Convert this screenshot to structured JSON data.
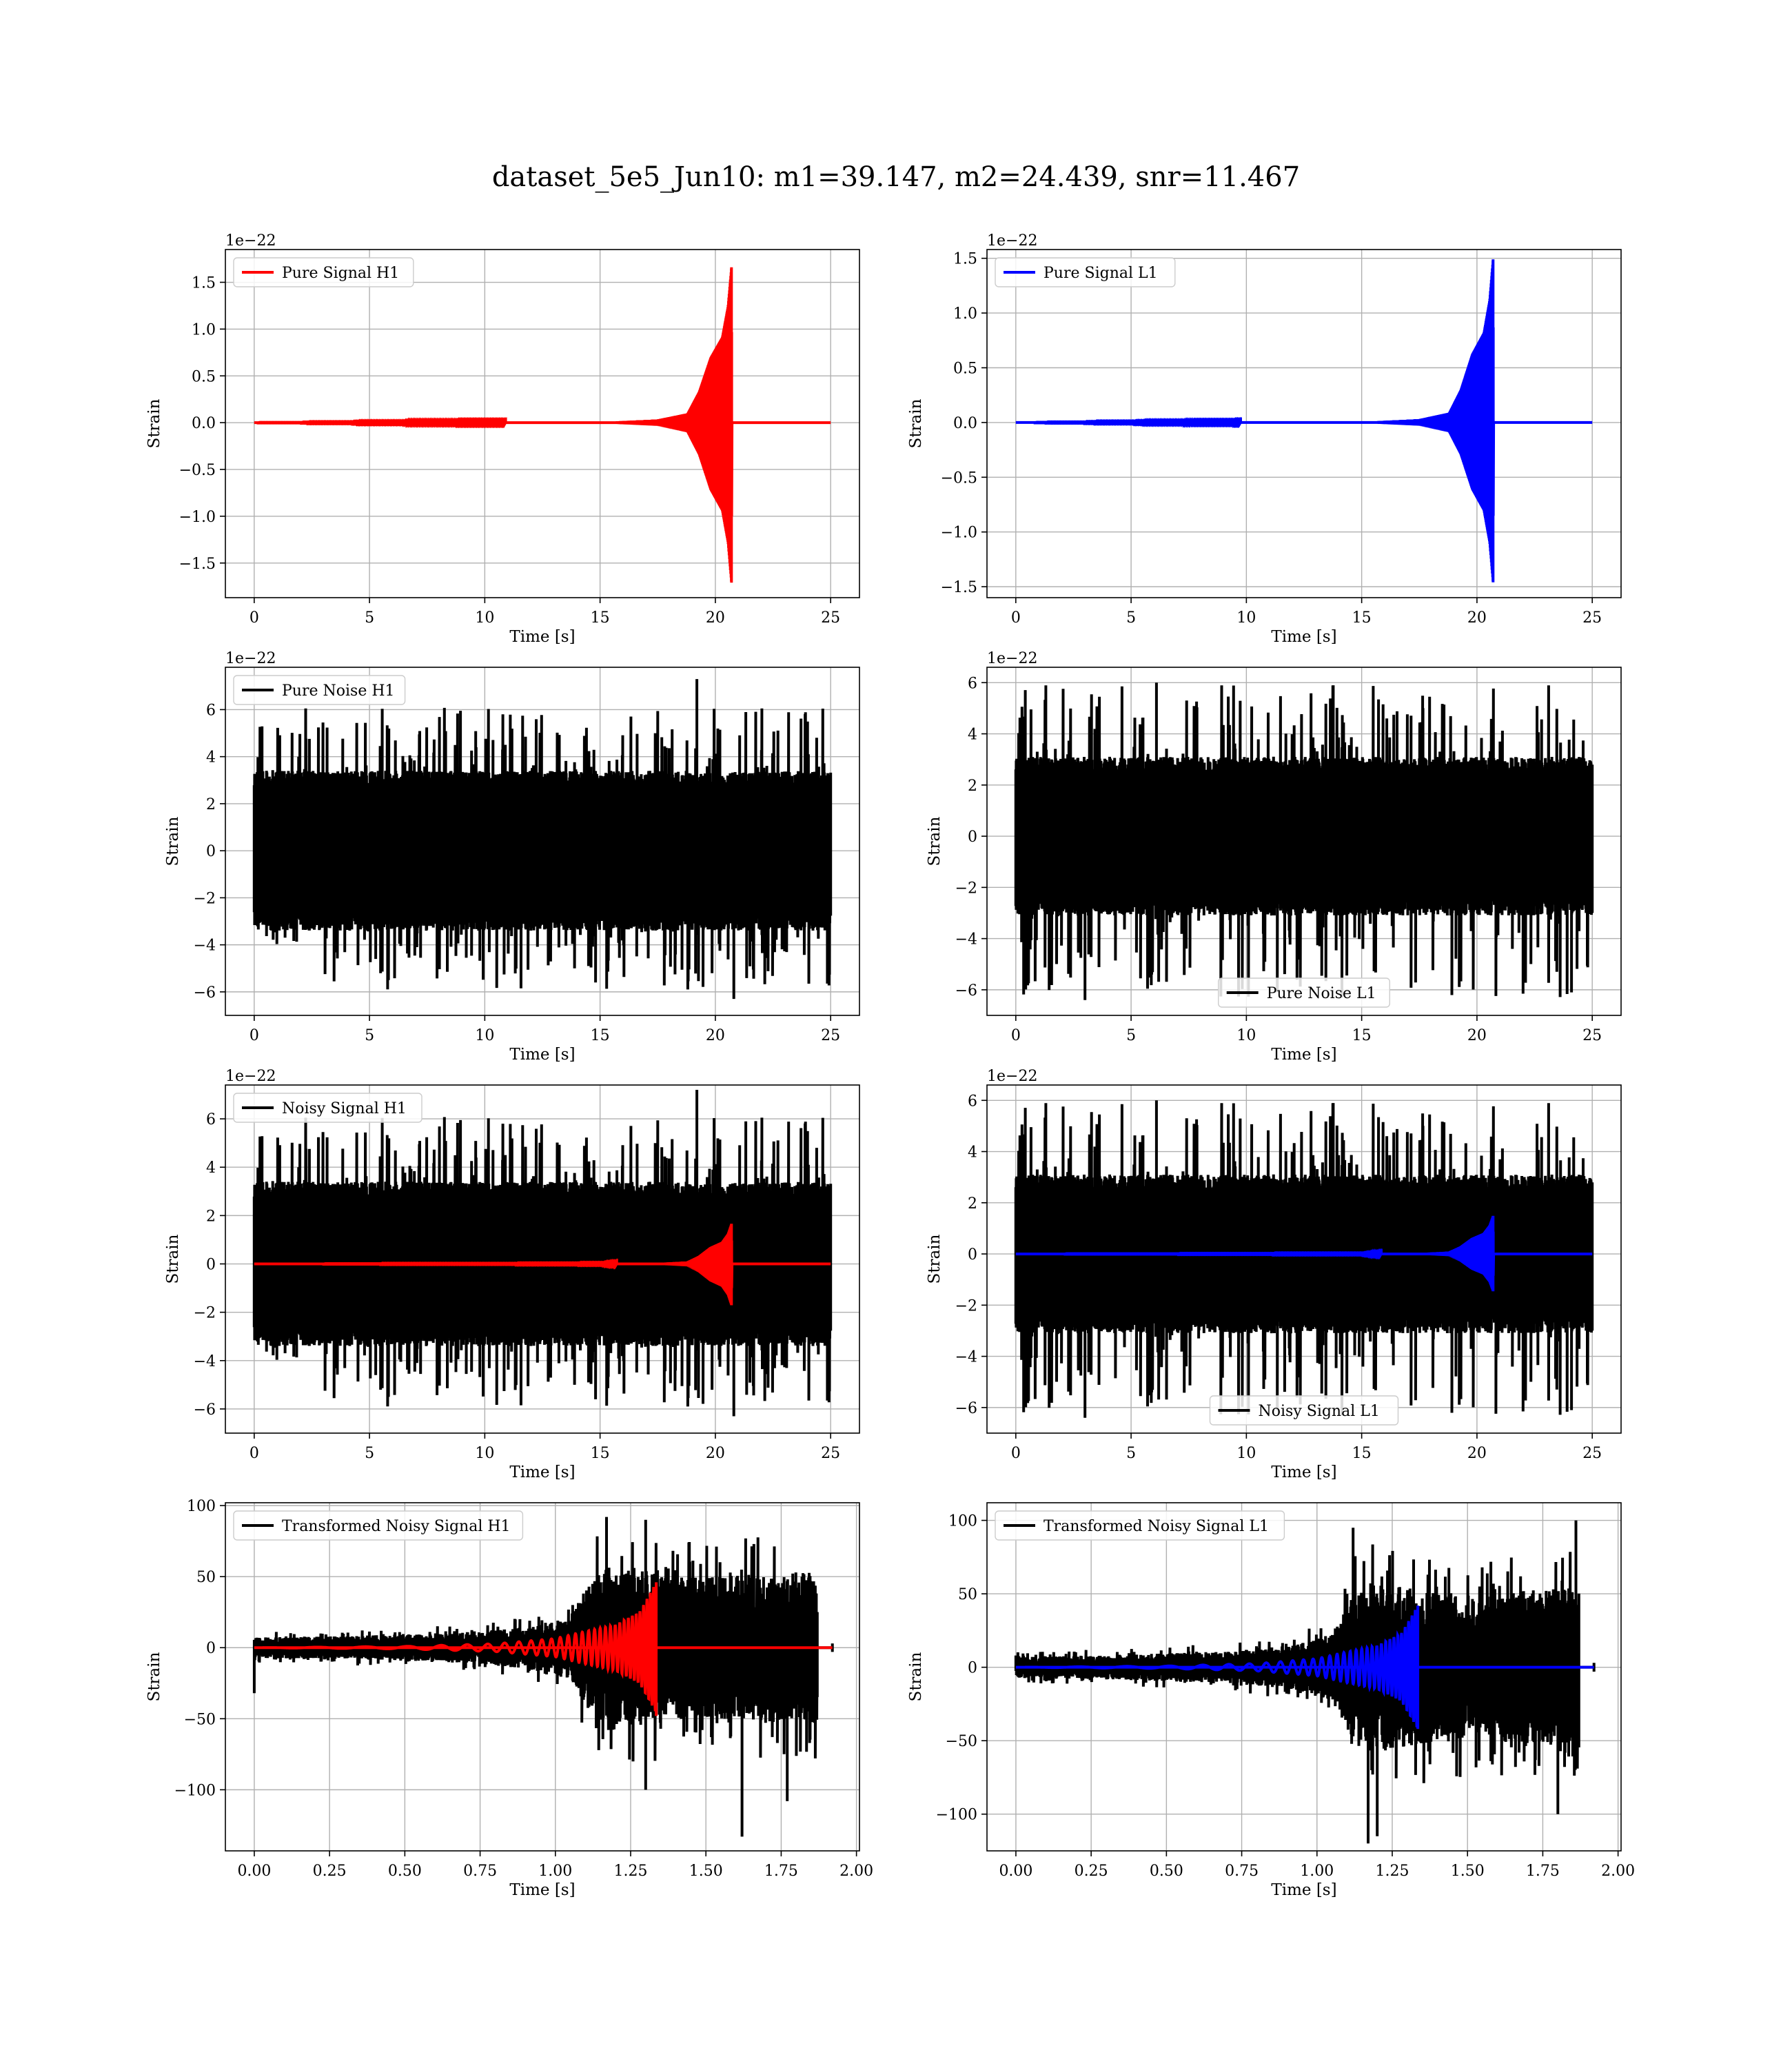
{
  "figure": {
    "suptitle": "dataset_5e5_Jun10: m1=39.147, m2=24.439, snr=11.467"
  },
  "colors": {
    "h1_signal": "#ff0000",
    "l1_signal": "#0000ff",
    "noise": "#000000",
    "grid": "#b0b0b0"
  },
  "chart_data": [
    {
      "id": "pure-signal-h1",
      "type": "line",
      "xlabel": "Time [s]",
      "ylabel": "Strain",
      "offset_text": "1e−22",
      "xlim": [
        -1.25,
        26.25
      ],
      "ylim": [
        -1.87,
        1.85
      ],
      "xticks": [
        0,
        5,
        10,
        15,
        20,
        25
      ],
      "xtick_labels": [
        "0",
        "5",
        "10",
        "15",
        "20",
        "25"
      ],
      "yticks": [
        -1.5,
        -1.0,
        -0.5,
        0.0,
        0.5,
        1.0,
        1.5
      ],
      "ytick_labels": [
        "−1.5",
        "−1.0",
        "−0.5",
        "0.0",
        "0.5",
        "1.0",
        "1.5"
      ],
      "grid": true,
      "legend_loc": "upper left",
      "series": [
        {
          "name": "Pure Signal H1",
          "color": "#ff0000",
          "kind": "chirp",
          "x_start": 0,
          "x_end": 25,
          "merger_x": 20.7,
          "peak_pos": 1.66,
          "peak_neg": -1.71,
          "envelope": [
            [
              0,
              0.0
            ],
            [
              15,
              0.003
            ],
            [
              17.5,
              0.02
            ],
            [
              18.8,
              0.06
            ],
            [
              19.3,
              0.2
            ],
            [
              19.8,
              0.42
            ],
            [
              20.3,
              0.55
            ],
            [
              20.55,
              0.75
            ],
            [
              20.7,
              1.0
            ],
            [
              20.72,
              0.0
            ],
            [
              25,
              0.0
            ]
          ]
        }
      ]
    },
    {
      "id": "pure-signal-l1",
      "type": "line",
      "xlabel": "Time [s]",
      "ylabel": "Strain",
      "offset_text": "1e−22",
      "xlim": [
        -1.25,
        26.25
      ],
      "ylim": [
        -1.6,
        1.58
      ],
      "xticks": [
        0,
        5,
        10,
        15,
        20,
        25
      ],
      "xtick_labels": [
        "0",
        "5",
        "10",
        "15",
        "20",
        "25"
      ],
      "yticks": [
        -1.5,
        -1.0,
        -0.5,
        0.0,
        0.5,
        1.0,
        1.5
      ],
      "ytick_labels": [
        "−1.5",
        "−1.0",
        "−0.5",
        "0.0",
        "0.5",
        "1.0",
        "1.5"
      ],
      "grid": true,
      "legend_loc": "upper left",
      "series": [
        {
          "name": "Pure Signal L1",
          "color": "#0000ff",
          "kind": "chirp",
          "x_start": 0,
          "x_end": 25,
          "merger_x": 20.7,
          "peak_pos": 1.49,
          "peak_neg": -1.46,
          "envelope": [
            [
              0,
              0.0
            ],
            [
              15,
              0.003
            ],
            [
              17.5,
              0.02
            ],
            [
              18.8,
              0.06
            ],
            [
              19.3,
              0.2
            ],
            [
              19.8,
              0.42
            ],
            [
              20.3,
              0.55
            ],
            [
              20.55,
              0.75
            ],
            [
              20.7,
              1.0
            ],
            [
              20.72,
              0.0
            ],
            [
              25,
              0.0
            ]
          ]
        }
      ]
    },
    {
      "id": "pure-noise-h1",
      "type": "line",
      "xlabel": "Time [s]",
      "ylabel": "Strain",
      "offset_text": "1e−22",
      "xlim": [
        -1.25,
        26.25
      ],
      "ylim": [
        -7.0,
        7.8
      ],
      "xticks": [
        0,
        5,
        10,
        15,
        20,
        25
      ],
      "xtick_labels": [
        "0",
        "5",
        "10",
        "15",
        "20",
        "25"
      ],
      "yticks": [
        -6,
        -4,
        -2,
        0,
        2,
        4,
        6
      ],
      "ytick_labels": [
        "−6",
        "−4",
        "−2",
        "0",
        "2",
        "4",
        "6"
      ],
      "grid": true,
      "legend_loc": "upper left",
      "series": [
        {
          "name": "Pure Noise H1",
          "color": "#000000",
          "kind": "noise",
          "x_start": 0,
          "x_end": 25,
          "core": 3.4,
          "spike_max": 6.1,
          "spike_min": -5.9,
          "extreme_spikes": [
            [
              19.2,
              7.3
            ],
            [
              20.8,
              -6.3
            ]
          ],
          "seed": 11
        }
      ]
    },
    {
      "id": "pure-noise-l1",
      "type": "line",
      "xlabel": "Time [s]",
      "ylabel": "Strain",
      "offset_text": "1e−22",
      "xlim": [
        -1.25,
        26.25
      ],
      "ylim": [
        -7.0,
        6.6
      ],
      "xticks": [
        0,
        5,
        10,
        15,
        20,
        25
      ],
      "xtick_labels": [
        "0",
        "5",
        "10",
        "15",
        "20",
        "25"
      ],
      "yticks": [
        -6,
        -4,
        -2,
        0,
        2,
        4,
        6
      ],
      "ytick_labels": [
        "−6",
        "−4",
        "−2",
        "0",
        "2",
        "4",
        "6"
      ],
      "grid": true,
      "legend_loc": "lower center",
      "series": [
        {
          "name": "Pure Noise L1",
          "color": "#000000",
          "kind": "noise",
          "x_start": 0,
          "x_end": 25,
          "core": 3.1,
          "spike_max": 5.9,
          "spike_min": -6.3,
          "extreme_spikes": [
            [
              3.0,
              -6.4
            ],
            [
              6.1,
              6.0
            ],
            [
              24.1,
              -6.1
            ]
          ],
          "seed": 23
        }
      ]
    },
    {
      "id": "noisy-signal-h1",
      "type": "line",
      "xlabel": "Time [s]",
      "ylabel": "Strain",
      "offset_text": "1e−22",
      "xlim": [
        -1.25,
        26.25
      ],
      "ylim": [
        -7.0,
        7.4
      ],
      "xticks": [
        0,
        5,
        10,
        15,
        20,
        25
      ],
      "xtick_labels": [
        "0",
        "5",
        "10",
        "15",
        "20",
        "25"
      ],
      "yticks": [
        -6,
        -4,
        -2,
        0,
        2,
        4,
        6
      ],
      "ytick_labels": [
        "−6",
        "−4",
        "−2",
        "0",
        "2",
        "4",
        "6"
      ],
      "grid": true,
      "legend_loc": "upper left",
      "series": [
        {
          "name": "Noisy Signal H1",
          "color": "#000000",
          "kind": "noise",
          "x_start": 0,
          "x_end": 25,
          "core": 3.4,
          "spike_max": 6.1,
          "spike_min": -5.9,
          "extreme_spikes": [
            [
              19.2,
              7.2
            ],
            [
              20.8,
              -6.3
            ]
          ],
          "seed": 11
        },
        {
          "name": "",
          "color": "#ff0000",
          "kind": "chirp",
          "x_start": 0,
          "x_end": 25,
          "merger_x": 20.7,
          "peak_pos": 1.66,
          "peak_neg": -1.71,
          "envelope": [
            [
              0,
              0.0
            ],
            [
              15,
              0.003
            ],
            [
              17.5,
              0.02
            ],
            [
              18.8,
              0.06
            ],
            [
              19.3,
              0.2
            ],
            [
              19.8,
              0.42
            ],
            [
              20.3,
              0.55
            ],
            [
              20.55,
              0.75
            ],
            [
              20.7,
              1.0
            ],
            [
              20.72,
              0.0
            ],
            [
              25,
              0.0
            ]
          ]
        }
      ]
    },
    {
      "id": "noisy-signal-l1",
      "type": "line",
      "xlabel": "Time [s]",
      "ylabel": "Strain",
      "offset_text": "1e−22",
      "xlim": [
        -1.25,
        26.25
      ],
      "ylim": [
        -7.0,
        6.6
      ],
      "xticks": [
        0,
        5,
        10,
        15,
        20,
        25
      ],
      "xtick_labels": [
        "0",
        "5",
        "10",
        "15",
        "20",
        "25"
      ],
      "yticks": [
        -6,
        -4,
        -2,
        0,
        2,
        4,
        6
      ],
      "ytick_labels": [
        "−6",
        "−4",
        "−2",
        "0",
        "2",
        "4",
        "6"
      ],
      "grid": true,
      "legend_loc": "lower center",
      "series": [
        {
          "name": "Noisy Signal L1",
          "color": "#000000",
          "kind": "noise",
          "x_start": 0,
          "x_end": 25,
          "core": 3.1,
          "spike_max": 5.9,
          "spike_min": -6.3,
          "extreme_spikes": [
            [
              3.0,
              -6.4
            ],
            [
              6.1,
              6.0
            ],
            [
              24.1,
              -6.1
            ]
          ],
          "seed": 23
        },
        {
          "name": "",
          "color": "#0000ff",
          "kind": "chirp",
          "x_start": 0,
          "x_end": 25,
          "merger_x": 20.7,
          "peak_pos": 1.49,
          "peak_neg": -1.46,
          "envelope": [
            [
              0,
              0.0
            ],
            [
              15,
              0.003
            ],
            [
              17.5,
              0.02
            ],
            [
              18.8,
              0.06
            ],
            [
              19.3,
              0.2
            ],
            [
              19.8,
              0.42
            ],
            [
              20.3,
              0.55
            ],
            [
              20.55,
              0.75
            ],
            [
              20.7,
              1.0
            ],
            [
              20.72,
              0.0
            ],
            [
              25,
              0.0
            ]
          ]
        }
      ]
    },
    {
      "id": "transformed-noisy-signal-h1",
      "type": "line",
      "xlabel": "Time [s]",
      "ylabel": "Strain",
      "offset_text": "",
      "xlim": [
        -0.096,
        2.01
      ],
      "ylim": [
        -143,
        102
      ],
      "xticks": [
        0.0,
        0.25,
        0.5,
        0.75,
        1.0,
        1.25,
        1.5,
        1.75,
        2.0
      ],
      "xtick_labels": [
        "0.00",
        "0.25",
        "0.50",
        "0.75",
        "1.00",
        "1.25",
        "1.50",
        "1.75",
        "2.00"
      ],
      "yticks": [
        -100,
        -50,
        0,
        50,
        100
      ],
      "ytick_labels": [
        "−100",
        "−50",
        "0",
        "50",
        "100"
      ],
      "grid": true,
      "legend_loc": "upper left",
      "series": [
        {
          "name": "Transformed Noisy Signal H1",
          "color": "#000000",
          "kind": "warped",
          "x_start": 0,
          "x_end": 1.92,
          "cut_x": 1.87,
          "noise_env": [
            [
              0,
              8
            ],
            [
              0.3,
              9
            ],
            [
              0.7,
              12
            ],
            [
              0.9,
              16
            ],
            [
              1.05,
              25
            ],
            [
              1.12,
              55
            ],
            [
              1.18,
              65
            ],
            [
              1.3,
              60
            ],
            [
              1.5,
              55
            ],
            [
              1.7,
              58
            ],
            [
              1.87,
              60
            ]
          ],
          "extreme_spikes": [
            [
              1.62,
              -133
            ],
            [
              1.3,
              -100
            ],
            [
              1.77,
              -108
            ],
            [
              1.17,
              92
            ],
            [
              1.3,
              90
            ],
            [
              0.0,
              -32
            ]
          ],
          "seed": 31
        },
        {
          "name": "",
          "color": "#ff0000",
          "kind": "warped_chirp",
          "x_start": 0,
          "x_end": 1.92,
          "merger_x": 1.335,
          "peak": 46,
          "peak_neg": -48,
          "envelope": [
            [
              0,
              0.0
            ],
            [
              0.5,
              0.02
            ],
            [
              0.8,
              0.06
            ],
            [
              1.0,
              0.14
            ],
            [
              1.1,
              0.25
            ],
            [
              1.2,
              0.35
            ],
            [
              1.28,
              0.55
            ],
            [
              1.335,
              1.0
            ],
            [
              1.34,
              0.0
            ],
            [
              1.92,
              0.0
            ]
          ]
        }
      ]
    },
    {
      "id": "transformed-noisy-signal-l1",
      "type": "line",
      "xlabel": "Time [s]",
      "ylabel": "Strain",
      "offset_text": "",
      "xlim": [
        -0.096,
        2.01
      ],
      "ylim": [
        -125,
        112
      ],
      "xticks": [
        0.0,
        0.25,
        0.5,
        0.75,
        1.0,
        1.25,
        1.5,
        1.75,
        2.0
      ],
      "xtick_labels": [
        "0.00",
        "0.25",
        "0.50",
        "0.75",
        "1.00",
        "1.25",
        "1.50",
        "1.75",
        "2.00"
      ],
      "yticks": [
        -100,
        -50,
        0,
        50,
        100
      ],
      "ytick_labels": [
        "−100",
        "−50",
        "0",
        "50",
        "100"
      ],
      "grid": true,
      "legend_loc": "upper left",
      "series": [
        {
          "name": "Transformed Noisy Signal L1",
          "color": "#000000",
          "kind": "warped",
          "x_start": 0,
          "x_end": 1.92,
          "cut_x": 1.87,
          "noise_env": [
            [
              0,
              8
            ],
            [
              0.3,
              9
            ],
            [
              0.7,
              12
            ],
            [
              0.9,
              16
            ],
            [
              1.05,
              25
            ],
            [
              1.12,
              55
            ],
            [
              1.18,
              65
            ],
            [
              1.3,
              60
            ],
            [
              1.5,
              55
            ],
            [
              1.7,
              58
            ],
            [
              1.87,
              60
            ]
          ],
          "extreme_spikes": [
            [
              1.17,
              -120
            ],
            [
              1.2,
              -115
            ],
            [
              1.86,
              100
            ],
            [
              1.12,
              95
            ],
            [
              1.8,
              -100
            ],
            [
              0.0,
              8
            ]
          ],
          "seed": 47
        },
        {
          "name": "",
          "color": "#0000ff",
          "kind": "warped_chirp",
          "x_start": 0,
          "x_end": 1.92,
          "merger_x": 1.335,
          "peak": 42,
          "peak_neg": -42,
          "envelope": [
            [
              0,
              0.0
            ],
            [
              0.5,
              0.02
            ],
            [
              0.8,
              0.06
            ],
            [
              1.0,
              0.14
            ],
            [
              1.1,
              0.25
            ],
            [
              1.2,
              0.35
            ],
            [
              1.28,
              0.55
            ],
            [
              1.335,
              1.0
            ],
            [
              1.34,
              0.0
            ],
            [
              1.92,
              0.0
            ]
          ]
        }
      ]
    }
  ]
}
